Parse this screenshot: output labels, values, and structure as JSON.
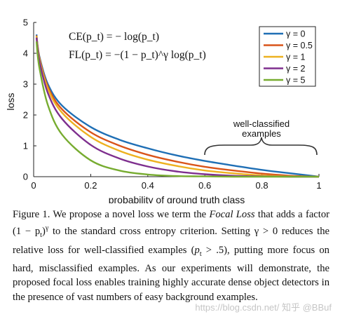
{
  "chart_data": {
    "type": "line",
    "xlabel": "probability of ground truth class",
    "ylabel": "loss",
    "xlim": [
      0,
      1
    ],
    "ylim": [
      0,
      5
    ],
    "x_ticks": [
      "0",
      "0.2",
      "0.4",
      "0.6",
      "0.8",
      "1"
    ],
    "y_ticks": [
      "0",
      "1",
      "2",
      "3",
      "4",
      "5"
    ],
    "equations": [
      "CE(p_t) = − log(p_t)",
      "FL(p_t) = −(1 − p_t)^γ log(p_t)"
    ],
    "annotation": [
      "well-classified",
      "examples"
    ],
    "legend_position": "top-right",
    "legend_prefix": "γ =",
    "x": [
      0.01,
      0.02,
      0.05,
      0.1,
      0.2,
      0.3,
      0.4,
      0.5,
      0.6,
      0.7,
      0.8,
      0.9,
      1.0
    ],
    "series": [
      {
        "name": "0",
        "color": "#1f6fb5",
        "values": [
          4.61,
          3.91,
          3.0,
          2.3,
          1.61,
          1.2,
          0.92,
          0.69,
          0.51,
          0.36,
          0.22,
          0.11,
          0.0
        ]
      },
      {
        "name": "0.5",
        "color": "#d9541a",
        "values": [
          4.58,
          3.87,
          2.92,
          2.18,
          1.44,
          1.01,
          0.71,
          0.49,
          0.32,
          0.2,
          0.1,
          0.03,
          0.0
        ]
      },
      {
        "name": "1",
        "color": "#edb120",
        "values": [
          4.56,
          3.83,
          2.85,
          2.07,
          1.29,
          0.84,
          0.55,
          0.35,
          0.2,
          0.11,
          0.04,
          0.01,
          0.0
        ]
      },
      {
        "name": "2",
        "color": "#7e2f8e",
        "values": [
          4.51,
          3.76,
          2.71,
          1.87,
          1.03,
          0.59,
          0.33,
          0.17,
          0.08,
          0.03,
          0.01,
          0.0,
          0.0
        ]
      },
      {
        "name": "5",
        "color": "#77ac30",
        "values": [
          4.38,
          3.54,
          2.32,
          1.36,
          0.53,
          0.2,
          0.07,
          0.02,
          0.01,
          0.0,
          0.0,
          0.0,
          0.0
        ]
      }
    ]
  },
  "caption": {
    "lead": "Figure 1. We propose a novel loss we term the ",
    "term": "Focal Loss",
    "line1_tail": " that adds a factor (1 − p",
    "line1_sub": "t",
    "line1_end": ")",
    "line1_sup": "γ",
    "line1_after": " to the standard cross entropy criterion. Setting ",
    "gamma_cond": "γ > 0",
    "line2_after": " reduces the relative loss for well-classified examples (",
    "pt_cond": "p",
    "pt_sub": "t",
    "pt_tail": " > .5)",
    "rest": ", putting more focus on hard, misclassified examples. As our experiments will demonstrate, the proposed focal loss enables training highly accurate dense object detectors in the presence of vast numbers of easy background examples."
  },
  "watermark": "https://blog.csdn.net/ 知乎 @BBuf"
}
